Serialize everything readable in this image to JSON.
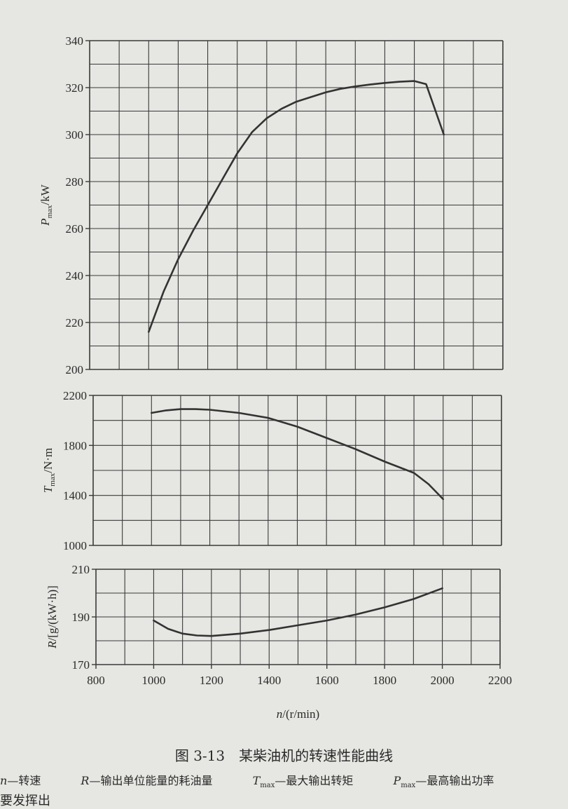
{
  "chart_data": [
    {
      "type": "line",
      "ylabel_main": "P",
      "ylabel_sub": "max",
      "ylabel_unit": "/kW",
      "xlim": [
        800,
        2200
      ],
      "ylim": [
        200,
        340
      ],
      "yticks": [
        200,
        220,
        240,
        260,
        280,
        300,
        320,
        340
      ],
      "series": [
        {
          "x": [
            1000,
            1050,
            1100,
            1150,
            1200,
            1250,
            1300,
            1350,
            1400,
            1450,
            1500,
            1550,
            1600,
            1650,
            1700,
            1750,
            1800,
            1850,
            1900,
            1940,
            2000
          ],
          "values": [
            216,
            233,
            247,
            259,
            270,
            281,
            292,
            301,
            307,
            311,
            314,
            316,
            318,
            319.5,
            320.5,
            321.3,
            322,
            322.5,
            322.8,
            321.5,
            300
          ]
        }
      ]
    },
    {
      "type": "line",
      "ylabel_main": "T",
      "ylabel_sub": "max",
      "ylabel_unit": "/N·m",
      "xlim": [
        800,
        2200
      ],
      "ylim": [
        1000,
        2200
      ],
      "yticks": [
        1000,
        1400,
        1800,
        2200
      ],
      "series": [
        {
          "x": [
            1000,
            1050,
            1100,
            1150,
            1200,
            1300,
            1400,
            1500,
            1600,
            1700,
            1800,
            1900,
            1950,
            2000
          ],
          "values": [
            2060,
            2080,
            2090,
            2090,
            2085,
            2060,
            2020,
            1950,
            1860,
            1770,
            1670,
            1580,
            1490,
            1370
          ]
        }
      ]
    },
    {
      "type": "line",
      "ylabel_main": "R",
      "ylabel_sub": "",
      "ylabel_unit": "/[g/(kW·h)]",
      "xlim": [
        800,
        2200
      ],
      "ylim": [
        170,
        210
      ],
      "yticks": [
        170,
        190,
        210
      ],
      "xlabel_main": "n",
      "xlabel_unit": "/(r/min)",
      "xticks": [
        800,
        1000,
        1200,
        1400,
        1600,
        1800,
        2000,
        2200
      ],
      "series": [
        {
          "x": [
            1000,
            1050,
            1100,
            1150,
            1200,
            1300,
            1400,
            1500,
            1600,
            1700,
            1800,
            1900,
            2000
          ],
          "values": [
            188.5,
            185,
            183,
            182.2,
            182,
            183,
            184.5,
            186.5,
            188.5,
            191,
            194,
            197.5,
            202
          ]
        }
      ]
    }
  ],
  "caption": "图 3-13　某柴油机的转速性能曲线",
  "legend": {
    "n_symbol": "n",
    "n_text": "—转速",
    "r_symbol": "R",
    "r_text": "—输出单位能量的耗油量",
    "t_symbol": "T",
    "t_sub": "max",
    "t_text": "—最大输出转矩",
    "p_symbol": "P",
    "p_sub": "max",
    "p_text": "—最高输出功率"
  },
  "edge_text": "要发挥出"
}
